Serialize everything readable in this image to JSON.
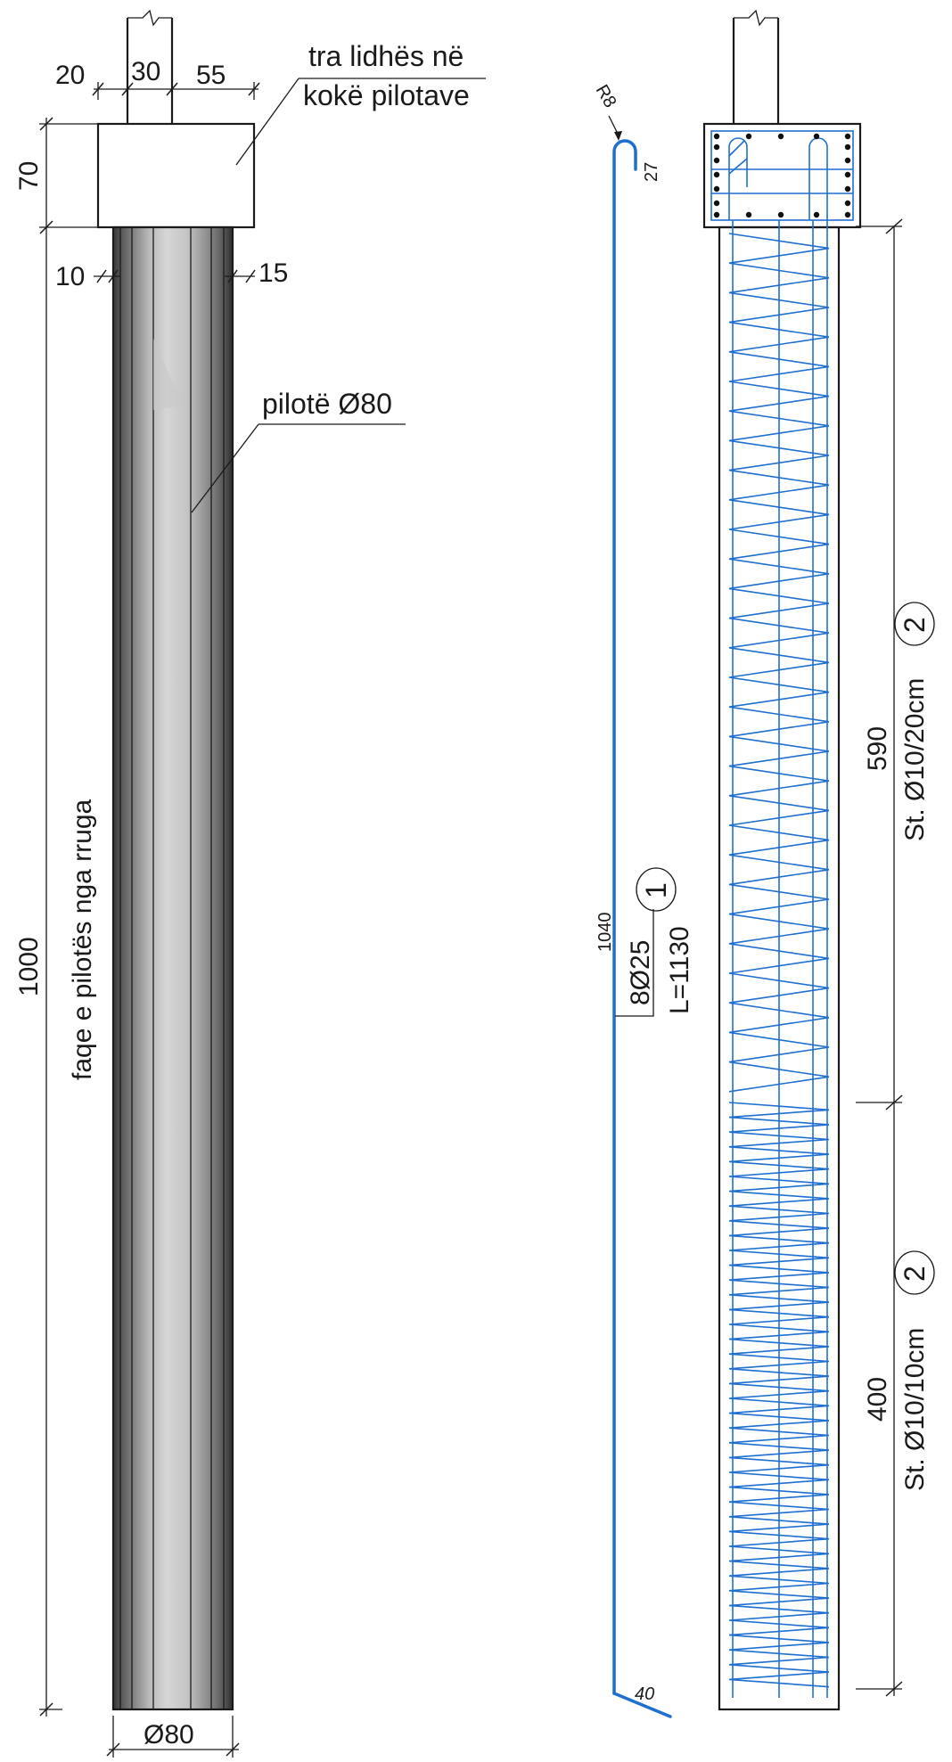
{
  "left_elevation": {
    "dims": {
      "left_offset": "20",
      "column_width": "30",
      "right_offset": "55",
      "cap_height": "70",
      "left_cover": "10",
      "right_cover": "15",
      "pile_length": "1000",
      "pile_diameter": "Ø80"
    },
    "labels": {
      "cap_line1": "tra lidhës në",
      "cap_line2": "kokë pilotave",
      "pile": "pilotë Ø80",
      "face": "faqe e pilotës nga rruga"
    }
  },
  "bar_schedule": {
    "hook_radius": "R8",
    "hook_length": "27",
    "straight_length": "1040",
    "foot_length": "40",
    "bar_spec": "8Ø25",
    "bar_total_length": "L=1130",
    "bar_mark": "1"
  },
  "right_section": {
    "upper_zone": {
      "length": "590",
      "spec": "St. Ø10/20cm",
      "mark": "2"
    },
    "lower_zone": {
      "length": "400",
      "spec": "St. Ø10/10cm",
      "mark": "2"
    }
  },
  "colors": {
    "line": "#1a1a1a",
    "rebar": "#1f6fd1"
  }
}
